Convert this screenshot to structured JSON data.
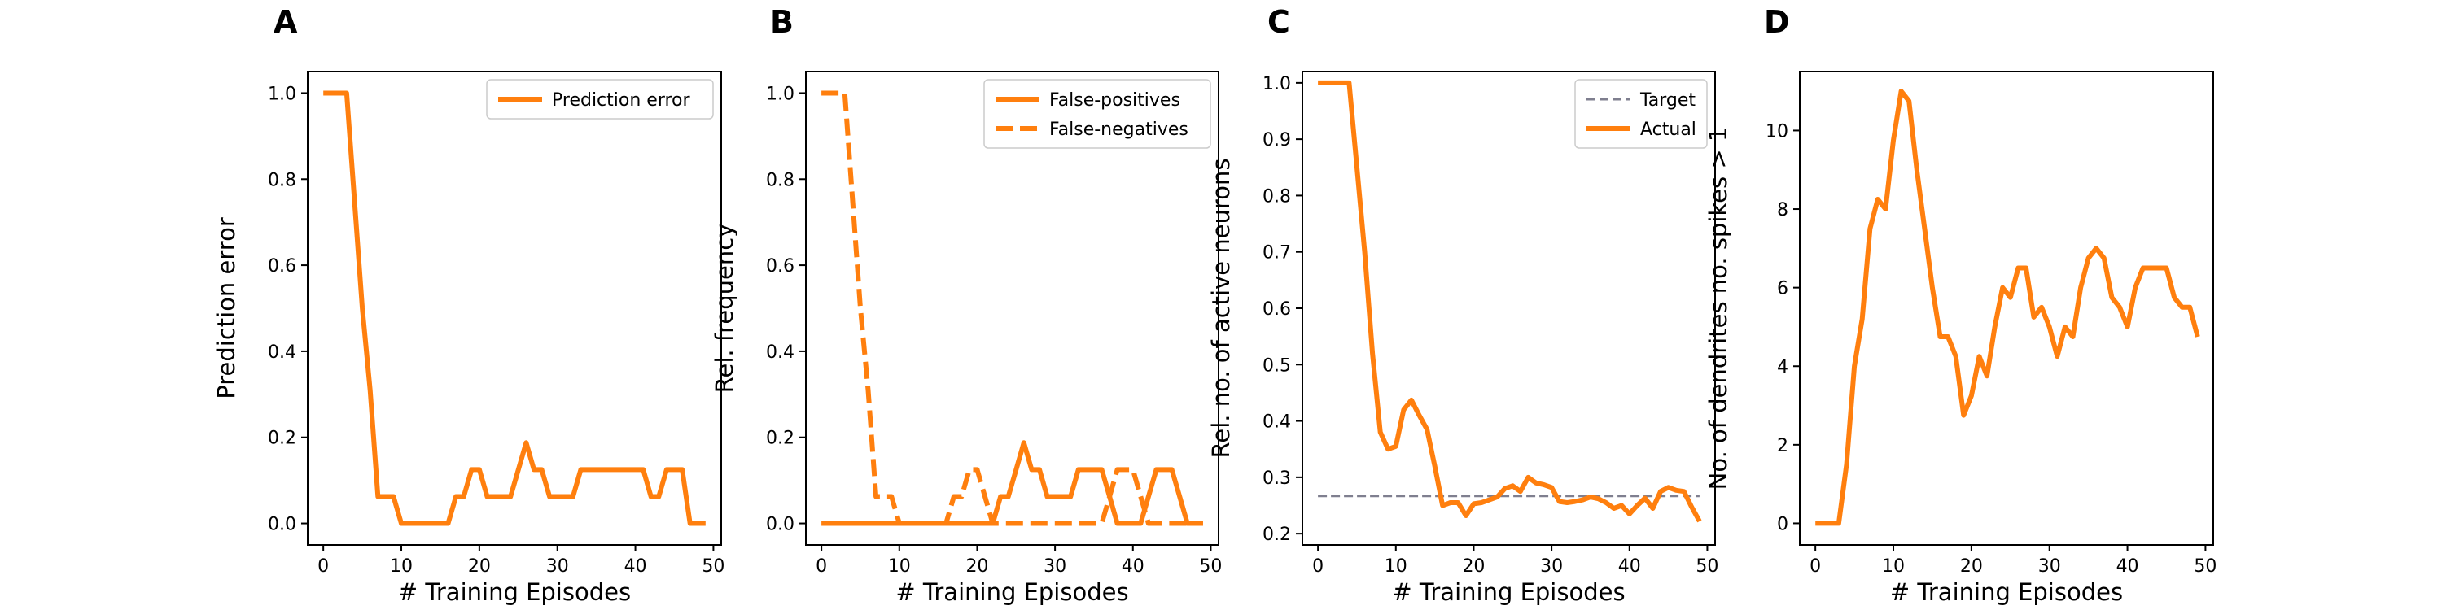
{
  "colors": {
    "orange": "#ff7f0e",
    "target": "#7f7f8f"
  },
  "chart_data": [
    {
      "panel": "A",
      "type": "line",
      "xlabel": "# Training Episodes",
      "ylabel": "Prediction error",
      "xlim": [
        -2,
        51
      ],
      "ylim": [
        -0.05,
        1.05
      ],
      "xticks": [
        0,
        10,
        20,
        30,
        40,
        50
      ],
      "yticks": [
        0.0,
        0.2,
        0.4,
        0.6,
        0.8,
        1.0
      ],
      "ytick_labels": [
        "0.0",
        "0.2",
        "0.4",
        "0.6",
        "0.8",
        "1.0"
      ],
      "legend_position": "top-right",
      "series": [
        {
          "name": "Prediction error",
          "style": "solid",
          "x": [
            0,
            1,
            2,
            3,
            4,
            5,
            6,
            7,
            8,
            9,
            10,
            11,
            12,
            13,
            14,
            15,
            16,
            17,
            18,
            19,
            20,
            21,
            22,
            23,
            24,
            25,
            26,
            27,
            28,
            29,
            30,
            31,
            32,
            33,
            34,
            35,
            36,
            37,
            38,
            39,
            40,
            41,
            42,
            43,
            44,
            45,
            46,
            47,
            48,
            49
          ],
          "y": [
            1.0,
            1.0,
            1.0,
            1.0,
            0.75,
            0.5,
            0.31,
            0.0625,
            0.0625,
            0.0625,
            0.0,
            0.0,
            0.0,
            0.0,
            0.0,
            0.0,
            0.0,
            0.0625,
            0.0625,
            0.125,
            0.125,
            0.0625,
            0.0625,
            0.0625,
            0.0625,
            0.125,
            0.1875,
            0.125,
            0.125,
            0.0625,
            0.0625,
            0.0625,
            0.0625,
            0.125,
            0.125,
            0.125,
            0.125,
            0.125,
            0.125,
            0.125,
            0.125,
            0.125,
            0.0625,
            0.0625,
            0.125,
            0.125,
            0.125,
            0.0,
            0.0,
            0.0
          ]
        }
      ]
    },
    {
      "panel": "B",
      "type": "line",
      "xlabel": "# Training Episodes",
      "ylabel": "Rel. frequency",
      "xlim": [
        -2,
        51
      ],
      "ylim": [
        -0.05,
        1.05
      ],
      "xticks": [
        0,
        10,
        20,
        30,
        40,
        50
      ],
      "yticks": [
        0.0,
        0.2,
        0.4,
        0.6,
        0.8,
        1.0
      ],
      "ytick_labels": [
        "0.0",
        "0.2",
        "0.4",
        "0.6",
        "0.8",
        "1.0"
      ],
      "legend_position": "top-right",
      "series": [
        {
          "name": "False-positives",
          "style": "solid",
          "x": [
            0,
            1,
            2,
            3,
            4,
            5,
            6,
            7,
            8,
            9,
            10,
            11,
            12,
            13,
            14,
            15,
            16,
            17,
            18,
            19,
            20,
            21,
            22,
            23,
            24,
            25,
            26,
            27,
            28,
            29,
            30,
            31,
            32,
            33,
            34,
            35,
            36,
            37,
            38,
            39,
            40,
            41,
            42,
            43,
            44,
            45,
            46,
            47,
            48,
            49
          ],
          "y": [
            0,
            0,
            0,
            0,
            0,
            0,
            0,
            0,
            0,
            0,
            0,
            0,
            0,
            0,
            0,
            0,
            0,
            0,
            0,
            0,
            0,
            0,
            0,
            0.0625,
            0.0625,
            0.125,
            0.1875,
            0.125,
            0.125,
            0.0625,
            0.0625,
            0.0625,
            0.0625,
            0.125,
            0.125,
            0.125,
            0.125,
            0.0625,
            0,
            0,
            0,
            0,
            0.0625,
            0.125,
            0.125,
            0.125,
            0.0625,
            0,
            0,
            0
          ]
        },
        {
          "name": "False-negatives",
          "style": "dashed",
          "x": [
            0,
            1,
            2,
            3,
            4,
            5,
            6,
            7,
            8,
            9,
            10,
            11,
            12,
            13,
            14,
            15,
            16,
            17,
            18,
            19,
            20,
            21,
            22,
            23,
            24,
            25,
            26,
            27,
            28,
            29,
            30,
            31,
            32,
            33,
            34,
            35,
            36,
            37,
            38,
            39,
            40,
            41,
            42,
            43,
            44,
            45,
            46,
            47,
            48,
            49
          ],
          "y": [
            1.0,
            1.0,
            1.0,
            1.0,
            0.75,
            0.5,
            0.31,
            0.0625,
            0.0625,
            0.0625,
            0,
            0,
            0,
            0,
            0,
            0,
            0,
            0.0625,
            0.0625,
            0.125,
            0.125,
            0.0625,
            0,
            0,
            0,
            0,
            0,
            0,
            0,
            0,
            0,
            0,
            0,
            0,
            0,
            0,
            0,
            0.0625,
            0.125,
            0.125,
            0.125,
            0.0625,
            0,
            0,
            0,
            0,
            0,
            0,
            0,
            0
          ]
        }
      ]
    },
    {
      "panel": "C",
      "type": "line",
      "xlabel": "# Training Episodes",
      "ylabel": "Rel. no. of active neurons",
      "xlim": [
        -2,
        51
      ],
      "ylim": [
        0.18,
        1.02
      ],
      "xticks": [
        0,
        10,
        20,
        30,
        40,
        50
      ],
      "yticks": [
        0.2,
        0.3,
        0.4,
        0.5,
        0.6,
        0.7,
        0.8,
        0.9,
        1.0
      ],
      "ytick_labels": [
        "0.2",
        "0.3",
        "0.4",
        "0.5",
        "0.6",
        "0.7",
        "0.8",
        "0.9",
        "1.0"
      ],
      "legend_position": "top-right",
      "series": [
        {
          "name": "Target",
          "style": "target",
          "x": [
            0,
            49
          ],
          "y": [
            0.267,
            0.267
          ]
        },
        {
          "name": "Actual",
          "style": "solid",
          "x": [
            0,
            1,
            2,
            3,
            4,
            5,
            6,
            7,
            8,
            9,
            10,
            11,
            12,
            13,
            14,
            15,
            16,
            17,
            18,
            19,
            20,
            21,
            22,
            23,
            24,
            25,
            26,
            27,
            28,
            29,
            30,
            31,
            32,
            33,
            34,
            35,
            36,
            37,
            38,
            39,
            40,
            41,
            42,
            43,
            44,
            45,
            46,
            47,
            48,
            49
          ],
          "y": [
            1.0,
            1.0,
            1.0,
            1.0,
            1.0,
            0.85,
            0.7,
            0.52,
            0.38,
            0.35,
            0.355,
            0.42,
            0.437,
            0.41,
            0.385,
            0.32,
            0.25,
            0.255,
            0.255,
            0.232,
            0.253,
            0.255,
            0.26,
            0.265,
            0.28,
            0.285,
            0.275,
            0.3,
            0.29,
            0.287,
            0.282,
            0.257,
            0.255,
            0.257,
            0.26,
            0.265,
            0.262,
            0.255,
            0.245,
            0.25,
            0.235,
            0.25,
            0.263,
            0.245,
            0.275,
            0.282,
            0.277,
            0.275,
            0.247,
            0.222
          ]
        }
      ]
    },
    {
      "panel": "D",
      "type": "line",
      "xlabel": "# Training Episodes",
      "ylabel": "No. of dendrites no. spikes > 1",
      "xlim": [
        -2,
        51
      ],
      "ylim": [
        -0.55,
        11.5
      ],
      "xticks": [
        0,
        10,
        20,
        30,
        40,
        50
      ],
      "yticks": [
        0,
        2,
        4,
        6,
        8,
        10
      ],
      "ytick_labels": [
        "0",
        "2",
        "4",
        "6",
        "8",
        "10"
      ],
      "legend_position": "none",
      "series": [
        {
          "name": "",
          "style": "solid",
          "x": [
            0,
            1,
            2,
            3,
            4,
            5,
            6,
            7,
            8,
            9,
            10,
            11,
            12,
            13,
            14,
            15,
            16,
            17,
            18,
            19,
            20,
            21,
            22,
            23,
            24,
            25,
            26,
            27,
            28,
            29,
            30,
            31,
            32,
            33,
            34,
            35,
            36,
            37,
            38,
            39,
            40,
            41,
            42,
            43,
            44,
            45,
            46,
            47,
            48,
            49
          ],
          "y": [
            0,
            0,
            0,
            0,
            1.5,
            4.0,
            5.2,
            7.5,
            8.25,
            8.0,
            9.75,
            11.0,
            10.75,
            9.0,
            7.5,
            6.0,
            4.75,
            4.75,
            4.25,
            2.75,
            3.25,
            4.25,
            3.75,
            5.0,
            6.0,
            5.75,
            6.5,
            6.5,
            5.25,
            5.5,
            5.0,
            4.25,
            5.0,
            4.75,
            6.0,
            6.75,
            7.0,
            6.75,
            5.75,
            5.5,
            5.0,
            6.0,
            6.5,
            6.5,
            6.5,
            6.5,
            5.75,
            5.5,
            5.5,
            4.75
          ]
        }
      ]
    }
  ]
}
